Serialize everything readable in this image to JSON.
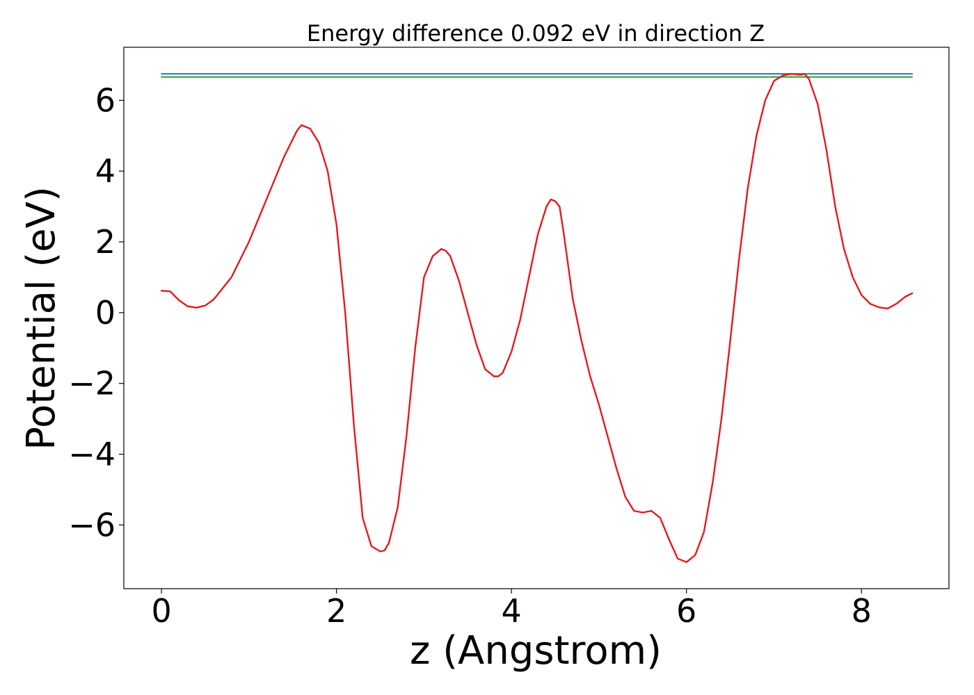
{
  "chart_data": {
    "type": "line",
    "title": "Energy difference 0.092 eV in direction Z",
    "xlabel": "z (Angstrom)",
    "ylabel": "Potential (eV)",
    "xlim": [
      -0.43,
      9.0
    ],
    "ylim": [
      -7.8,
      7.5
    ],
    "xticks": [
      0,
      2,
      4,
      6,
      8
    ],
    "yticks": [
      6,
      4,
      2,
      0,
      -2,
      -4,
      -6
    ],
    "xtick_labels": [
      "0",
      "2",
      "4",
      "6",
      "8"
    ],
    "ytick_labels": [
      "6",
      "4",
      "2",
      "0",
      "−2",
      "−4",
      "−6"
    ],
    "grid": false,
    "legend": "none",
    "series": [
      {
        "color": "#1f77b4",
        "x": [
          0,
          8.58
        ],
        "y": [
          6.75,
          6.75
        ]
      },
      {
        "color": "#2ca02c",
        "x": [
          0,
          8.58
        ],
        "y": [
          6.66,
          6.66
        ]
      },
      {
        "color": "#e41a1c",
        "x": [
          0,
          0.1,
          0.2,
          0.3,
          0.4,
          0.5,
          0.6,
          0.8,
          1.0,
          1.2,
          1.4,
          1.55,
          1.6,
          1.7,
          1.8,
          1.9,
          2.0,
          2.1,
          2.2,
          2.3,
          2.4,
          2.5,
          2.55,
          2.6,
          2.7,
          2.8,
          2.9,
          3.0,
          3.1,
          3.2,
          3.25,
          3.3,
          3.4,
          3.5,
          3.6,
          3.7,
          3.8,
          3.85,
          3.9,
          4.0,
          4.1,
          4.2,
          4.3,
          4.4,
          4.45,
          4.5,
          4.55,
          4.6,
          4.7,
          4.8,
          4.9,
          5.0,
          5.1,
          5.2,
          5.3,
          5.4,
          5.5,
          5.6,
          5.7,
          5.8,
          5.9,
          6.0,
          6.1,
          6.2,
          6.3,
          6.4,
          6.5,
          6.6,
          6.7,
          6.8,
          6.9,
          7.0,
          7.1,
          7.2,
          7.3,
          7.35,
          7.4,
          7.5,
          7.6,
          7.7,
          7.8,
          7.9,
          8.0,
          8.1,
          8.2,
          8.3,
          8.4,
          8.5,
          8.58
        ],
        "y": [
          0.62,
          0.6,
          0.35,
          0.18,
          0.14,
          0.2,
          0.38,
          1.0,
          2.0,
          3.2,
          4.4,
          5.15,
          5.3,
          5.2,
          4.8,
          4.0,
          2.5,
          0.0,
          -3.2,
          -5.8,
          -6.6,
          -6.75,
          -6.72,
          -6.5,
          -5.5,
          -3.5,
          -1.0,
          1.0,
          1.6,
          1.8,
          1.75,
          1.6,
          0.9,
          0.0,
          -0.9,
          -1.6,
          -1.8,
          -1.8,
          -1.7,
          -1.1,
          -0.2,
          1.0,
          2.2,
          3.0,
          3.2,
          3.15,
          3.0,
          2.2,
          0.4,
          -0.8,
          -1.8,
          -2.6,
          -3.5,
          -4.4,
          -5.2,
          -5.6,
          -5.65,
          -5.6,
          -5.8,
          -6.4,
          -6.95,
          -7.05,
          -6.85,
          -6.2,
          -4.8,
          -3.0,
          -0.8,
          1.5,
          3.5,
          5.0,
          6.0,
          6.55,
          6.7,
          6.75,
          6.72,
          6.75,
          6.6,
          5.9,
          4.6,
          3.0,
          1.8,
          1.0,
          0.5,
          0.25,
          0.15,
          0.12,
          0.25,
          0.45,
          0.55
        ]
      }
    ]
  }
}
